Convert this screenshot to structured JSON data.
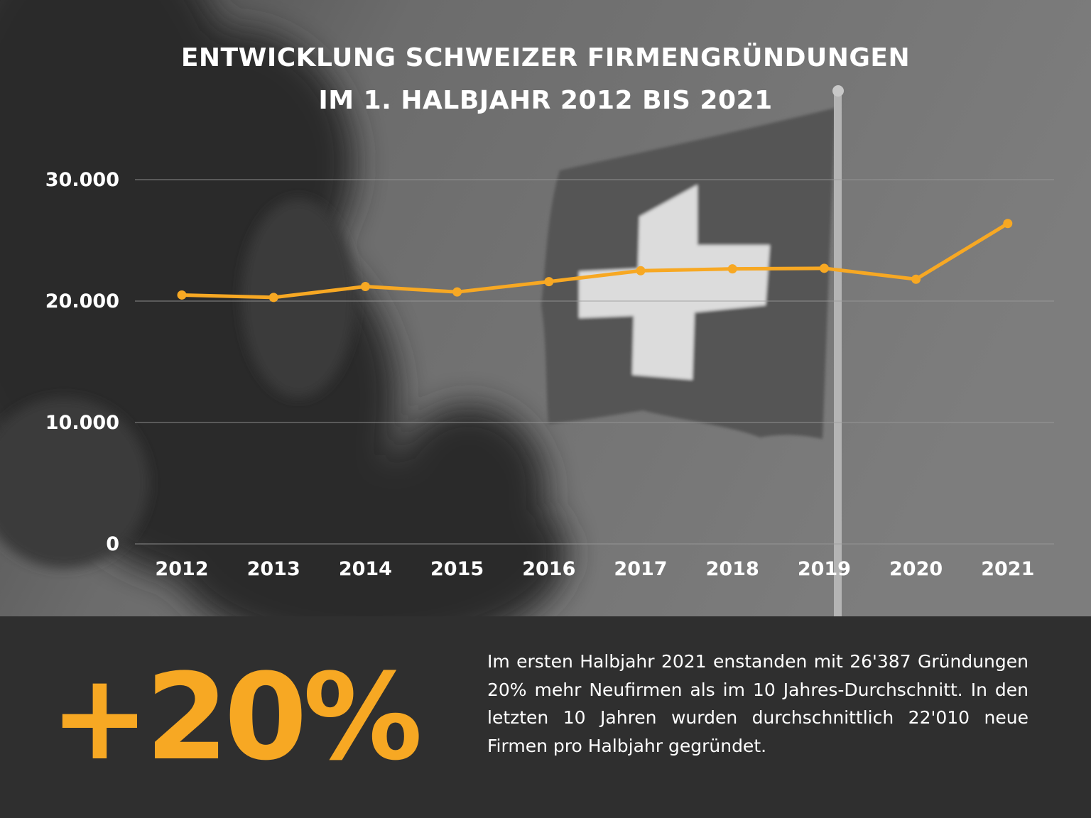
{
  "title": {
    "line1": "ENTWICKLUNG SCHWEIZER FIRMENGRÜNDUNGEN",
    "line2": "IM 1. HALBJAHR 2012 BIS 2021"
  },
  "colors": {
    "line": "#f7a823",
    "accent_text": "#f7a823",
    "footer_bg": "#2f2f2f",
    "text": "#ffffff",
    "gridline": "#9a9a9a"
  },
  "chart_data": {
    "type": "line",
    "x": [
      "2012",
      "2013",
      "2014",
      "2015",
      "2016",
      "2017",
      "2018",
      "2019",
      "2020",
      "2021"
    ],
    "series": [
      {
        "values": [
          20500,
          20300,
          21200,
          20750,
          21600,
          22500,
          22650,
          22700,
          21800,
          26387
        ]
      }
    ],
    "yticks": [
      0,
      10000,
      20000,
      30000
    ],
    "ytick_labels": [
      "0",
      "10.000",
      "20.000",
      "30.000"
    ],
    "ylim": [
      0,
      30000
    ],
    "grid": true,
    "legend": "none"
  },
  "footer": {
    "big_stat": "+20%",
    "summary": "Im ersten Halbjahr 2021 enstanden mit 26'387 Gründungen 20% mehr Neufirmen als im 10 Jahres-Durchschnitt. In den letzten 10 Jahren wurden durchschnittlich 22'010 neue Firmen pro Halbjahr gegründet."
  }
}
